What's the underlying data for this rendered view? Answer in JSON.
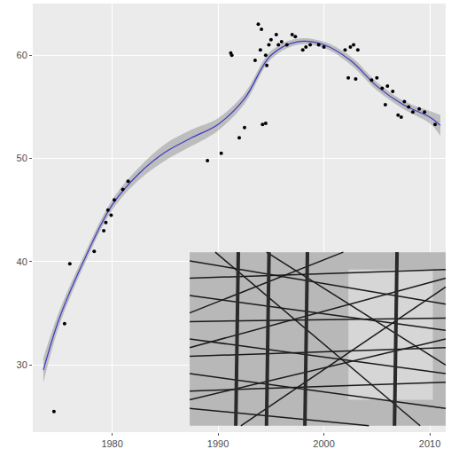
{
  "chart_data": {
    "type": "scatter",
    "xlim": [
      1972.5,
      2011.5
    ],
    "xticks": [
      1980,
      1990,
      2000,
      2010
    ],
    "ylim": [
      23.5,
      65
    ],
    "yticks": [
      30,
      40,
      50,
      60
    ],
    "grid": true,
    "series": [
      {
        "type": "scatter",
        "marker": "circle",
        "color": "#000000",
        "x": [
          1974.5,
          1975.5,
          1976,
          1978.3,
          1979.2,
          1979.4,
          1979.6,
          1979.9,
          1980.2,
          1981,
          1981.5,
          1989,
          1990.3,
          1991.2,
          1991.3,
          1992,
          1992.5,
          1993.5,
          1993.8,
          1994,
          1994.1,
          1994.2,
          1994.5,
          1994.5,
          1994.6,
          1994.8,
          1995,
          1995.5,
          1995.7,
          1996,
          1996.5,
          1997,
          1997.3,
          1998,
          1998.3,
          1998.7,
          1999.5,
          2000,
          2002,
          2002.3,
          2002.5,
          2002.8,
          2003,
          2003.2,
          2004.5,
          2005,
          2005.5,
          2005.8,
          2006,
          2006.5,
          2007,
          2007.3,
          2007.6,
          2008,
          2008.4,
          2009,
          2009.5,
          2010.5
        ],
        "values": [
          25.5,
          34,
          39.8,
          41,
          43,
          43.8,
          45,
          44.5,
          46,
          47,
          47.8,
          49.8,
          50.5,
          60.2,
          60,
          52,
          53,
          59.5,
          63,
          60.5,
          62.5,
          53.3,
          53.4,
          60,
          59,
          61,
          61.5,
          62,
          61,
          61.3,
          61,
          62,
          61.8,
          60.5,
          60.8,
          61,
          61,
          60.8,
          60.5,
          57.8,
          60.8,
          61,
          57.7,
          60.5,
          57.6,
          57.8,
          56.8,
          55.2,
          57,
          56.5,
          54.2,
          54,
          55.5,
          55,
          54.5,
          54.8,
          54.5,
          53.3
        ]
      },
      {
        "type": "line",
        "line_style": "solid",
        "color": "#3b3bc4",
        "x": [
          1973.5,
          1975,
          1977.5,
          1980,
          1982.5,
          1985,
          1987.5,
          1990,
          1992.5,
          1995,
          1997.5,
          2000,
          2002.5,
          2005,
          2007.5,
          2010,
          2011
        ],
        "values": [
          29.5,
          34.5,
          40.5,
          45.5,
          48.5,
          50.6,
          52,
          53.3,
          55.8,
          60,
          61.3,
          61,
          59.5,
          57,
          55.2,
          54,
          53.2
        ],
        "lower": [
          28.3,
          33.8,
          40,
          45,
          47.9,
          49.8,
          51.2,
          52.7,
          55.3,
          59.6,
          61,
          60.7,
          59.1,
          56.6,
          54.8,
          53.4,
          52.2
        ],
        "upper": [
          30.7,
          35.2,
          41,
          46,
          49.1,
          51.4,
          52.8,
          53.9,
          56.3,
          60.4,
          61.6,
          61.3,
          59.9,
          57.4,
          55.6,
          54.6,
          54.2
        ]
      }
    ]
  }
}
